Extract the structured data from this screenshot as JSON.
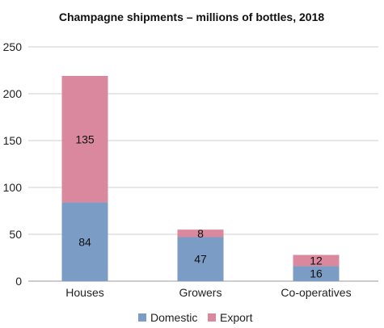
{
  "chart_data": {
    "type": "bar",
    "stacked": true,
    "title": "Champagne shipments – millions of bottles, 2018",
    "xlabel": "",
    "ylabel": "",
    "categories": [
      "Houses",
      "Growers",
      "Co-operatives"
    ],
    "series": [
      {
        "name": "Domestic",
        "values": [
          84,
          47,
          16
        ],
        "color": "#7b9cc4"
      },
      {
        "name": "Export",
        "values": [
          135,
          8,
          12
        ],
        "color": "#d9889d"
      }
    ],
    "ylim": [
      0,
      250
    ],
    "yticks": [
      0,
      50,
      100,
      150,
      200,
      250
    ],
    "grid": true,
    "legend_position": "bottom"
  }
}
